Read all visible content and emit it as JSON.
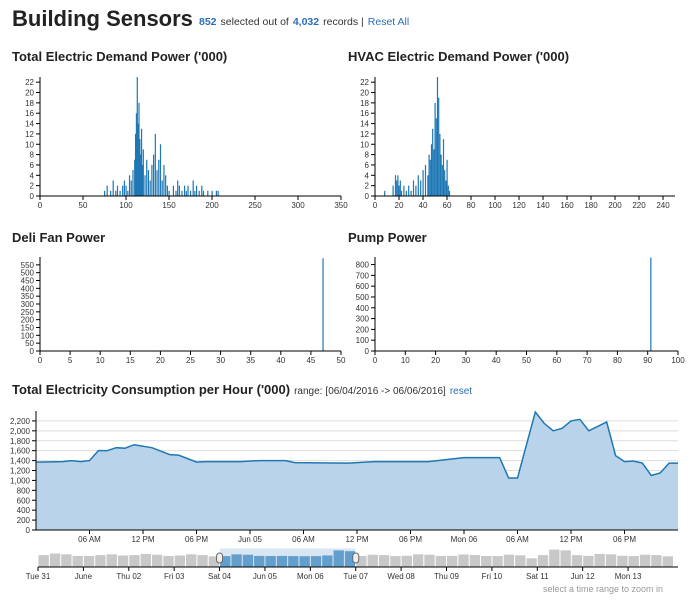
{
  "header": {
    "title": "Building Sensors",
    "selected": "852",
    "selected_text": "selected out of",
    "total": "4,032",
    "records_text": "records |",
    "reset_all": "Reset All"
  },
  "chart_data": [
    {
      "type": "bar",
      "title": "Total Electric Demand Power ('000)",
      "color": "#1f77b4",
      "x": [
        75,
        78,
        82,
        85,
        88,
        90,
        93,
        96,
        98,
        100,
        102,
        104,
        106,
        108,
        110,
        111,
        112,
        113,
        114,
        115,
        116,
        117,
        118,
        119,
        120,
        122,
        124,
        126,
        128,
        130,
        132,
        134,
        136,
        138,
        140,
        142,
        144,
        146,
        148,
        150,
        155,
        158,
        160,
        162,
        165,
        168,
        170,
        172,
        175,
        178,
        180,
        182,
        185,
        188,
        190,
        195,
        200,
        205,
        207
      ],
      "values": [
        1,
        2,
        1,
        3,
        1,
        2,
        1,
        2,
        3,
        2,
        1,
        4,
        3,
        5,
        7,
        12,
        16,
        23,
        14,
        18,
        11,
        8,
        13,
        6,
        9,
        4,
        7,
        5,
        3,
        6,
        8,
        12,
        5,
        7,
        10,
        3,
        6,
        4,
        2,
        1,
        2,
        1,
        3,
        2,
        1,
        2,
        1,
        2,
        1,
        3,
        1,
        2,
        1,
        2,
        1,
        1,
        1,
        1,
        1
      ],
      "xlim": [
        0,
        350
      ],
      "xticks": [
        0,
        50,
        100,
        150,
        200,
        250,
        300,
        350
      ],
      "ylim": [
        0,
        23
      ],
      "yticks": [
        0,
        2,
        4,
        6,
        8,
        10,
        12,
        14,
        16,
        18,
        20,
        22
      ]
    },
    {
      "type": "bar",
      "title": "HVAC Electric Demand Power ('000)",
      "color": "#1f77b4",
      "x": [
        8,
        15,
        17,
        18,
        19,
        20,
        21,
        22,
        24,
        26,
        28,
        30,
        32,
        34,
        36,
        38,
        40,
        42,
        44,
        45,
        46,
        47,
        48,
        49,
        50,
        51,
        52,
        53,
        54,
        55,
        56,
        57,
        58,
        59,
        60,
        61,
        62
      ],
      "values": [
        1,
        2,
        4,
        3,
        4,
        2,
        3,
        1,
        2,
        1,
        2,
        1,
        3,
        2,
        4,
        3,
        5,
        6,
        4,
        8,
        7,
        10,
        13,
        9,
        18,
        15,
        23,
        19,
        12,
        8,
        6,
        11,
        5,
        3,
        7,
        2,
        1
      ],
      "xlim": [
        0,
        250
      ],
      "xticks": [
        0,
        20,
        40,
        60,
        80,
        100,
        120,
        140,
        160,
        180,
        200,
        220,
        240
      ],
      "ylim": [
        0,
        23
      ],
      "yticks": [
        0,
        2,
        4,
        6,
        8,
        10,
        12,
        14,
        16,
        18,
        20,
        22
      ]
    },
    {
      "type": "bar",
      "title": "Deli Fan Power",
      "color": "#1f77b4",
      "x": [
        47
      ],
      "values": [
        592
      ],
      "xlim": [
        0,
        50
      ],
      "xticks": [
        0,
        5,
        10,
        15,
        20,
        25,
        30,
        35,
        40,
        45,
        50
      ],
      "ylim": [
        0,
        600
      ],
      "yticks": [
        0,
        50,
        100,
        150,
        200,
        250,
        300,
        350,
        400,
        450,
        500,
        550
      ]
    },
    {
      "type": "bar",
      "title": "Pump Power",
      "color": "#1f77b4",
      "x": [
        91
      ],
      "values": [
        865
      ],
      "xlim": [
        0,
        100
      ],
      "xticks": [
        0,
        10,
        20,
        30,
        40,
        50,
        60,
        70,
        80,
        90,
        100
      ],
      "ylim": [
        0,
        870
      ],
      "yticks": [
        0,
        100,
        200,
        300,
        400,
        500,
        600,
        700,
        800
      ]
    },
    {
      "type": "area",
      "title": "Total Electricity Consumption per Hour ('000)",
      "range_label": "range:",
      "range": "[06/04/2016 -> 06/06/2016]",
      "reset": "reset",
      "color": "#1f77b4",
      "fill": "#b9d3ea",
      "grid": true,
      "x": [
        0,
        3,
        4,
        5,
        6,
        7,
        8,
        9,
        10,
        11,
        13,
        15,
        16,
        18,
        19,
        23,
        25,
        28,
        29,
        35,
        38,
        44,
        48,
        52,
        53,
        54,
        56,
        57,
        58,
        59,
        60,
        61,
        62,
        64,
        65,
        66,
        67,
        68,
        69,
        70,
        71,
        72
      ],
      "values": [
        1370,
        1380,
        1400,
        1380,
        1400,
        1600,
        1600,
        1660,
        1650,
        1720,
        1660,
        1520,
        1510,
        1370,
        1380,
        1380,
        1400,
        1400,
        1360,
        1350,
        1380,
        1380,
        1460,
        1460,
        1050,
        1050,
        2380,
        2150,
        2000,
        2050,
        2200,
        2230,
        2000,
        2180,
        1500,
        1380,
        1390,
        1350,
        1100,
        1150,
        1350,
        1350
      ],
      "xlim": [
        0,
        72
      ],
      "xticks": [
        {
          "value": 6,
          "label": "06 AM"
        },
        {
          "value": 12,
          "label": "12 PM"
        },
        {
          "value": 18,
          "label": "06 PM"
        },
        {
          "value": 24,
          "label": "Jun 05"
        },
        {
          "value": 30,
          "label": "06 AM"
        },
        {
          "value": 36,
          "label": "12 PM"
        },
        {
          "value": 42,
          "label": "06 PM"
        },
        {
          "value": 48,
          "label": "Mon 06"
        },
        {
          "value": 54,
          "label": "06 AM"
        },
        {
          "value": 60,
          "label": "12 PM"
        },
        {
          "value": 66,
          "label": "06 PM"
        }
      ],
      "ylim": [
        0,
        2400
      ],
      "yticks": [
        0,
        200,
        400,
        600,
        800,
        {
          "value": 1000,
          "label": "1,000"
        },
        {
          "value": 1200,
          "label": "1,200"
        },
        {
          "value": 1400,
          "label": "1,400"
        },
        {
          "value": 1600,
          "label": "1,600"
        },
        {
          "value": 1800,
          "label": "1,800"
        },
        {
          "value": 2000,
          "label": "2,000"
        },
        {
          "value": 2200,
          "label": "2,200"
        }
      ]
    },
    {
      "type": "range-bar",
      "note": "select a time range to zoom in",
      "color": "#1f77b4",
      "base_color": "#c8c8c8",
      "x": [
        0,
        0.25,
        0.5,
        0.75,
        1,
        1.25,
        1.5,
        1.75,
        2,
        2.25,
        2.5,
        2.75,
        3,
        3.25,
        3.5,
        3.75,
        4,
        4.25,
        4.5,
        4.75,
        5,
        5.25,
        5.5,
        5.75,
        6,
        6.25,
        6.5,
        6.75,
        7,
        7.25,
        7.5,
        7.75,
        8,
        8.25,
        8.5,
        8.75,
        9,
        9.25,
        9.5,
        9.75,
        10,
        10.25,
        10.5,
        10.75,
        11,
        11.25,
        11.5,
        11.75,
        12,
        12.25,
        12.5,
        12.75,
        13,
        13.25,
        13.5,
        13.75
      ],
      "values": [
        1500,
        1700,
        1600,
        1400,
        1400,
        1500,
        1600,
        1450,
        1500,
        1650,
        1550,
        1400,
        1450,
        1600,
        1500,
        1350,
        1380,
        1600,
        1550,
        1400,
        1390,
        1400,
        1380,
        1360,
        1380,
        1460,
        2100,
        2000,
        1400,
        1550,
        1500,
        1380,
        1420,
        1600,
        1550,
        1400,
        1400,
        1580,
        1520,
        1390,
        1380,
        1560,
        1480,
        1100,
        1500,
        2200,
        2100,
        1500,
        1400,
        1650,
        1600,
        1420,
        1380,
        1550,
        1500,
        1350
      ],
      "selection": [
        4,
        7
      ],
      "xlim": [
        0,
        14.1
      ],
      "ylim": [
        0,
        2400
      ],
      "xticks": [
        {
          "value": 0,
          "label": "Tue 31"
        },
        {
          "value": 1,
          "label": "June"
        },
        {
          "value": 2,
          "label": "Thu 02"
        },
        {
          "value": 3,
          "label": "Fri 03"
        },
        {
          "value": 4,
          "label": "Sat 04"
        },
        {
          "value": 5,
          "label": "Jun 05"
        },
        {
          "value": 6,
          "label": "Mon 06"
        },
        {
          "value": 7,
          "label": "Tue 07"
        },
        {
          "value": 8,
          "label": "Wed 08"
        },
        {
          "value": 9,
          "label": "Thu 09"
        },
        {
          "value": 10,
          "label": "Fri 10"
        },
        {
          "value": 11,
          "label": "Sat 11"
        },
        {
          "value": 12,
          "label": "Jun 12"
        },
        {
          "value": 13,
          "label": "Mon 13"
        }
      ]
    }
  ]
}
